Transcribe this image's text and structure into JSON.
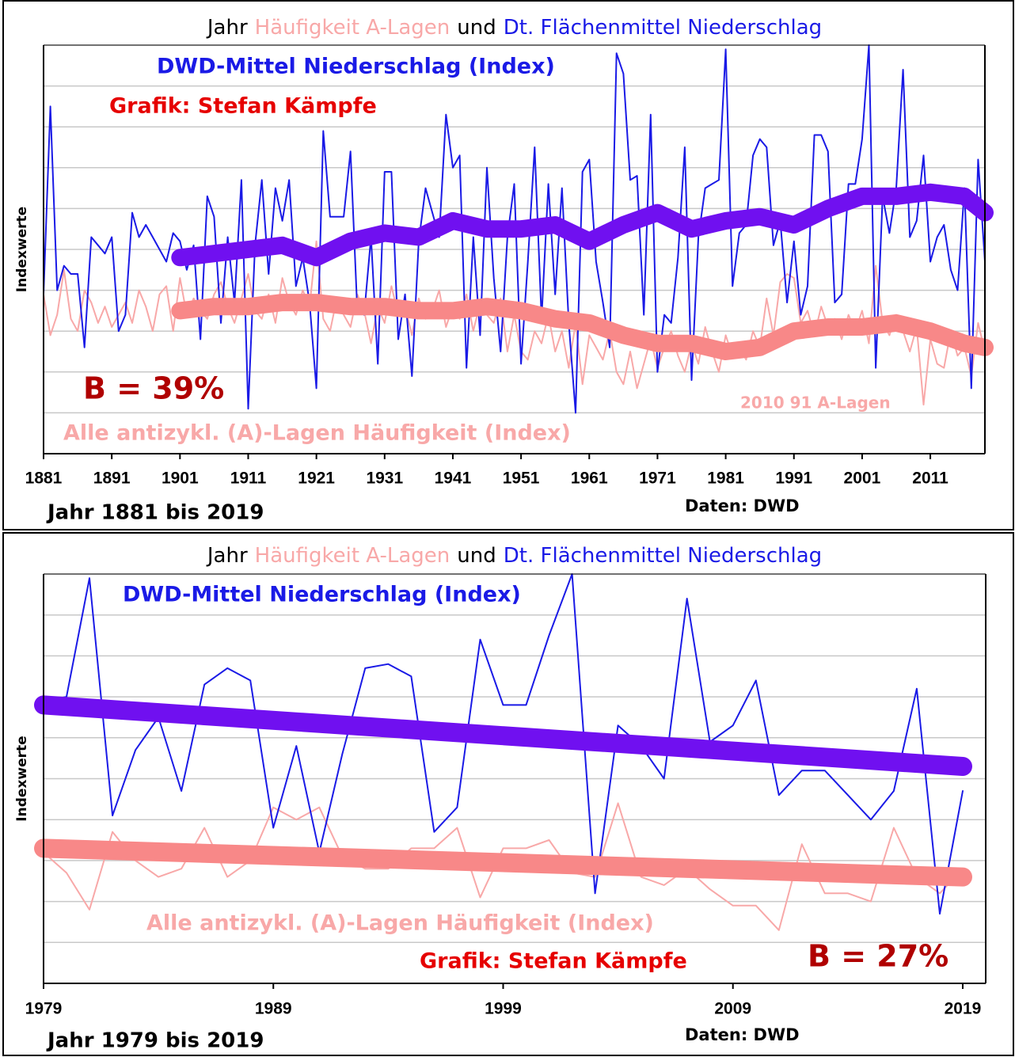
{
  "chart_data": [
    {
      "type": "line",
      "title_parts": [
        {
          "text": "Jahr",
          "color": "#000000"
        },
        {
          "text": "Häufigkeit A-Lagen",
          "color": "#f8a8a8"
        },
        {
          "text": "und",
          "color": "#000000"
        },
        {
          "text": "Dt. Flächenmittel Niederschlag",
          "color": "#1a1ae6"
        }
      ],
      "ylabel": "Indexwerte",
      "annotations": [
        {
          "text": "DWD-Mittel Niederschlag (Index)",
          "color": "#1a1ae6"
        },
        {
          "text": "Grafik: Stefan Kämpfe",
          "color": "#e60000"
        },
        {
          "text": "B = 39%",
          "color": "#b00000"
        },
        {
          "text": "Alle antizykl. (A)-Lagen Häufigkeit (Index)",
          "color": "#f8a8a8"
        },
        {
          "text": "2010 91 A-Lagen",
          "color": "#f8a8a8"
        },
        {
          "text": "Jahr 1881 bis 2019",
          "color": "#000000"
        },
        {
          "text": "Daten: DWD",
          "color": "#000000"
        }
      ],
      "x": [
        1881,
        1882,
        1883,
        1884,
        1885,
        1886,
        1887,
        1888,
        1889,
        1890,
        1891,
        1892,
        1893,
        1894,
        1895,
        1896,
        1897,
        1898,
        1899,
        1900,
        1901,
        1902,
        1903,
        1904,
        1905,
        1906,
        1907,
        1908,
        1909,
        1910,
        1911,
        1912,
        1913,
        1914,
        1915,
        1916,
        1917,
        1918,
        1919,
        1920,
        1921,
        1922,
        1923,
        1924,
        1925,
        1926,
        1927,
        1928,
        1929,
        1930,
        1931,
        1932,
        1933,
        1934,
        1935,
        1936,
        1937,
        1938,
        1939,
        1940,
        1941,
        1942,
        1943,
        1944,
        1945,
        1946,
        1947,
        1948,
        1949,
        1950,
        1951,
        1952,
        1953,
        1954,
        1955,
        1956,
        1957,
        1958,
        1959,
        1960,
        1961,
        1962,
        1963,
        1964,
        1965,
        1966,
        1967,
        1968,
        1969,
        1970,
        1971,
        1972,
        1973,
        1974,
        1975,
        1976,
        1977,
        1978,
        1979,
        1980,
        1981,
        1982,
        1983,
        1984,
        1985,
        1986,
        1987,
        1988,
        1989,
        1990,
        1991,
        1992,
        1993,
        1994,
        1995,
        1996,
        1997,
        1998,
        1999,
        2000,
        2001,
        2002,
        2003,
        2004,
        2005,
        2006,
        2007,
        2008,
        2009,
        2010,
        2011,
        2012,
        2013,
        2014,
        2015,
        2016,
        2017,
        2018,
        2019
      ],
      "xlim": [
        1881,
        2019
      ],
      "xticks": [
        1881,
        1891,
        1901,
        1911,
        1921,
        1931,
        1941,
        1951,
        1961,
        1971,
        1981,
        1991,
        2001,
        2011
      ],
      "ylim": [
        0,
        10
      ],
      "yticks": [
        0,
        1,
        2,
        3,
        4,
        5,
        6,
        7,
        8,
        9,
        10
      ],
      "grid": true,
      "show_ytick_labels": false,
      "series": [
        {
          "name": "Alle antizykl. (A)-Lagen Häufigkeit (Index)",
          "color": "#f8a8a8",
          "line_width": 2,
          "values": [
            3.9,
            2.9,
            3.4,
            4.5,
            3.3,
            3.0,
            4.0,
            3.7,
            3.2,
            3.6,
            3.1,
            3.4,
            3.7,
            3.2,
            4.0,
            3.6,
            3.0,
            3.9,
            4.1,
            3.0,
            4.3,
            3.4,
            3.8,
            3.5,
            3.3,
            3.9,
            4.2,
            3.6,
            3.2,
            3.8,
            4.4,
            3.5,
            3.3,
            3.9,
            3.2,
            4.3,
            3.7,
            3.4,
            4.0,
            3.6,
            5.2,
            3.3,
            3.0,
            3.8,
            3.4,
            3.1,
            3.9,
            3.5,
            2.7,
            3.6,
            3.2,
            4.1,
            3.4,
            3.6,
            2.9,
            3.8,
            3.3,
            3.5,
            4.0,
            3.1,
            3.6,
            3.3,
            3.9,
            3.0,
            3.7,
            3.4,
            3.2,
            3.8,
            2.5,
            3.4,
            2.5,
            2.3,
            3.0,
            2.7,
            3.4,
            2.5,
            3.0,
            2.1,
            3.2,
            1.7,
            2.9,
            2.6,
            2.3,
            3.0,
            2.0,
            1.7,
            2.5,
            1.6,
            2.2,
            2.8,
            2.1,
            2.6,
            3.0,
            2.4,
            2.0,
            2.7,
            2.2,
            3.1,
            2.5,
            2.0,
            2.9,
            2.4,
            2.6,
            2.3,
            3.0,
            2.6,
            3.8,
            2.9,
            4.2,
            4.4,
            4.3,
            3.2,
            3.5,
            2.9,
            3.6,
            3.1,
            3.3,
            2.8,
            3.4,
            3.0,
            3.5,
            2.7,
            4.6,
            3.2,
            2.9,
            3.4,
            3.0,
            2.5,
            3.1,
            1.2,
            2.8,
            2.2,
            2.1,
            3.0,
            2.4,
            2.6,
            1.9,
            3.2,
            2.5
          ]
        },
        {
          "name": "DWD-Mittel Niederschlag (Index)",
          "color": "#1a1ae6",
          "line_width": 2,
          "values": [
            3.9,
            8.5,
            4.0,
            4.6,
            4.4,
            4.4,
            2.6,
            5.3,
            5.1,
            4.9,
            5.3,
            3.0,
            3.4,
            5.9,
            5.3,
            5.6,
            5.3,
            5.0,
            4.7,
            5.4,
            5.2,
            4.5,
            5.1,
            2.8,
            6.3,
            5.8,
            3.2,
            5.3,
            3.7,
            6.7,
            1.1,
            5.1,
            6.7,
            4.4,
            6.5,
            5.7,
            6.7,
            4.1,
            4.8,
            3.7,
            1.6,
            7.9,
            5.8,
            5.8,
            5.8,
            7.4,
            3.5,
            3.4,
            5.3,
            2.2,
            6.9,
            6.9,
            2.8,
            3.9,
            1.9,
            5.2,
            6.5,
            5.9,
            5.3,
            8.3,
            7.0,
            7.3,
            2.1,
            5.3,
            2.9,
            7.0,
            4.3,
            2.5,
            5.3,
            6.6,
            2.2,
            4.7,
            7.5,
            3.3,
            6.6,
            3.9,
            6.5,
            3.2,
            1.0,
            6.9,
            7.2,
            4.7,
            3.7,
            2.6,
            9.8,
            9.3,
            6.7,
            6.8,
            3.4,
            8.3,
            2.0,
            3.4,
            3.2,
            4.8,
            7.5,
            1.8,
            5.3,
            6.5,
            6.6,
            6.7,
            9.9,
            4.1,
            5.4,
            5.6,
            7.3,
            7.7,
            7.5,
            5.1,
            5.7,
            3.7,
            5.2,
            3.4,
            4.1,
            7.8,
            7.8,
            7.4,
            3.7,
            3.9,
            6.6,
            6.6,
            7.7,
            10.0,
            2.1,
            6.3,
            5.4,
            6.5,
            9.4,
            5.3,
            5.7,
            7.3,
            4.7,
            5.3,
            5.6,
            4.5,
            4.0,
            6.5,
            1.6,
            7.2,
            4.7
          ]
        },
        {
          "color": "#7010f0",
          "line_width": 22,
          "x": [
            1901,
            1906,
            1911,
            1916,
            1921,
            1926,
            1931,
            1936,
            1941,
            1946,
            1951,
            1956,
            1961,
            1966,
            1971,
            1976,
            1981,
            1986,
            1991,
            1996,
            2001,
            2006,
            2011,
            2016,
            2019
          ],
          "values": [
            4.8,
            4.9,
            5.0,
            5.1,
            4.8,
            5.2,
            5.4,
            5.3,
            5.7,
            5.5,
            5.5,
            5.6,
            5.2,
            5.6,
            5.9,
            5.5,
            5.7,
            5.8,
            5.6,
            6.0,
            6.3,
            6.3,
            6.4,
            6.3,
            5.9
          ]
        },
        {
          "color": "#f88888",
          "line_width": 22,
          "x": [
            1901,
            1906,
            1911,
            1916,
            1921,
            1926,
            1931,
            1936,
            1941,
            1946,
            1951,
            1956,
            1961,
            1966,
            1971,
            1976,
            1981,
            1986,
            1991,
            1996,
            2001,
            2006,
            2011,
            2016,
            2019
          ],
          "values": [
            3.5,
            3.6,
            3.6,
            3.7,
            3.7,
            3.6,
            3.6,
            3.5,
            3.5,
            3.6,
            3.5,
            3.3,
            3.2,
            2.9,
            2.7,
            2.7,
            2.5,
            2.6,
            3.0,
            3.1,
            3.1,
            3.2,
            3.0,
            2.7,
            2.6
          ]
        }
      ]
    },
    {
      "type": "line",
      "title_parts": [
        {
          "text": "Jahr",
          "color": "#000000"
        },
        {
          "text": "Häufigkeit A-Lagen",
          "color": "#f8a8a8"
        },
        {
          "text": "und",
          "color": "#000000"
        },
        {
          "text": "Dt. Flächenmittel Niederschlag",
          "color": "#1a1ae6"
        }
      ],
      "ylabel": "Indexwerte",
      "annotations": [
        {
          "text": "DWD-Mittel Niederschlag (Index)",
          "color": "#1a1ae6"
        },
        {
          "text": "Alle antizykl. (A)-Lagen Häufigkeit (Index)",
          "color": "#f8a8a8"
        },
        {
          "text": "Grafik: Stefan Kämpfe",
          "color": "#e60000"
        },
        {
          "text": "B = 27%",
          "color": "#b00000"
        },
        {
          "text": "Jahr 1979 bis 2019",
          "color": "#000000"
        },
        {
          "text": "Daten: DWD",
          "color": "#000000"
        }
      ],
      "x": [
        1979,
        1980,
        1981,
        1982,
        1983,
        1984,
        1985,
        1986,
        1987,
        1988,
        1989,
        1990,
        1991,
        1992,
        1993,
        1994,
        1995,
        1996,
        1997,
        1998,
        1999,
        2000,
        2001,
        2002,
        2003,
        2004,
        2005,
        2006,
        2007,
        2008,
        2009,
        2010,
        2011,
        2012,
        2013,
        2014,
        2015,
        2016,
        2017,
        2018,
        2019
      ],
      "xlim": [
        1979,
        2020
      ],
      "xticks": [
        1979,
        1989,
        1999,
        2009,
        2019
      ],
      "ylim": [
        0,
        10
      ],
      "yticks": [
        0,
        1,
        2,
        3,
        4,
        5,
        6,
        7,
        8,
        9,
        10
      ],
      "grid": true,
      "show_ytick_labels": false,
      "series": [
        {
          "name": "Alle antizykl. (A)-Lagen Häufigkeit (Index)",
          "color": "#f8a8a8",
          "line_width": 2,
          "values": [
            3.2,
            2.7,
            1.8,
            3.7,
            3.0,
            2.6,
            2.8,
            3.8,
            2.6,
            3.0,
            4.3,
            4.0,
            4.3,
            3.1,
            2.8,
            2.8,
            3.3,
            3.3,
            3.8,
            2.1,
            3.3,
            3.3,
            3.5,
            2.7,
            2.6,
            4.4,
            2.6,
            2.4,
            2.8,
            2.3,
            1.9,
            1.9,
            1.3,
            3.4,
            2.2,
            2.2,
            2.0,
            3.8,
            2.6,
            2.2,
            2.8
          ]
        },
        {
          "name": "DWD-Mittel Niederschlag (Index)",
          "color": "#1a1ae6",
          "line_width": 2,
          "values": [
            6.9,
            7.0,
            9.9,
            4.1,
            5.7,
            6.5,
            4.7,
            7.3,
            7.7,
            7.4,
            3.8,
            5.8,
            3.2,
            5.6,
            7.7,
            7.8,
            7.5,
            3.7,
            4.3,
            8.4,
            6.8,
            6.8,
            8.5,
            10.0,
            2.2,
            6.3,
            5.8,
            5.0,
            9.4,
            5.9,
            6.3,
            7.4,
            4.6,
            5.2,
            5.2,
            4.6,
            4.0,
            4.7,
            7.2,
            1.7,
            4.7
          ]
        },
        {
          "color": "#7010f0",
          "line_width": 24,
          "x": [
            1979,
            2019
          ],
          "values": [
            6.8,
            5.3
          ]
        },
        {
          "color": "#f88888",
          "line_width": 24,
          "x": [
            1979,
            2019
          ],
          "values": [
            3.3,
            2.6
          ]
        }
      ]
    }
  ]
}
